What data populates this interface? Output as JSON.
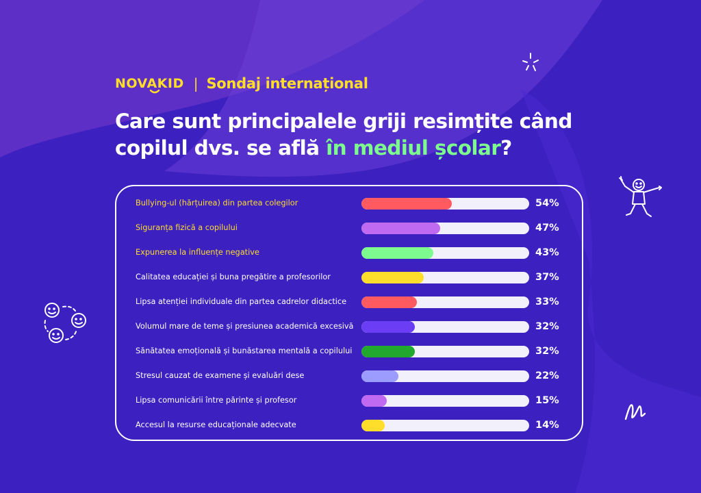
{
  "header": {
    "logo": "NOVAKID",
    "separator": "|",
    "survey_label": "Sondaj internațional"
  },
  "title": {
    "line1": "Care sunt principalele griji resimțite când",
    "line2_before": "copilul dvs. se află ",
    "line2_highlight": "în mediul școlar",
    "line2_after": "?"
  },
  "colors": {
    "background": "#3c20c0",
    "accent_yellow": "#ffde2b",
    "accent_green": "#7dfb8e",
    "track": "#f2f0fb"
  },
  "chart_data": {
    "type": "bar",
    "orientation": "horizontal",
    "xlim": [
      0,
      100
    ],
    "unit": "%",
    "rows": [
      {
        "label": "Bullying-ul (hărțuirea) din partea colegilor",
        "value": 54,
        "display": "54%",
        "color": "#ff5a5f",
        "highlight": true
      },
      {
        "label": "Siguranța fizică a copilului",
        "value": 47,
        "display": "47%",
        "color": "#c06af2",
        "highlight": true
      },
      {
        "label": "Expunerea la influențe negative",
        "value": 43,
        "display": "43%",
        "color": "#7dfb8e",
        "highlight": true
      },
      {
        "label": "Calitatea educației și buna pregătire  a profesorilor",
        "value": 37,
        "display": "37%",
        "color": "#ffde2b",
        "highlight": false
      },
      {
        "label": "Lipsa atenției individuale din partea cadrelor didactice",
        "value": 33,
        "display": "33%",
        "color": "#ff5a5f",
        "highlight": false
      },
      {
        "label": "Volumul mare de teme și presiunea academică excesivă",
        "value": 32,
        "display": "32%",
        "color": "#6b3df5",
        "highlight": false
      },
      {
        "label": "Sănătatea emoțională și bunăstarea mentală a copilului",
        "value": 32,
        "display": "32%",
        "color": "#22a82f",
        "highlight": false
      },
      {
        "label": "Stresul cauzat de examene și evaluări dese",
        "value": 22,
        "display": "22%",
        "color": "#9c9cff",
        "highlight": false
      },
      {
        "label": "Lipsa comunicării între părinte și profesor",
        "value": 15,
        "display": "15%",
        "color": "#c06af2",
        "highlight": false
      },
      {
        "label": "Accesul la resurse educaționale adecvate",
        "value": 14,
        "display": "14%",
        "color": "#ffde2b",
        "highlight": false
      }
    ]
  },
  "icons": [
    "sparkle-icon",
    "child-figure-icon",
    "smiley-faces-icon",
    "squiggle-icon",
    "logo-smile-icon"
  ]
}
